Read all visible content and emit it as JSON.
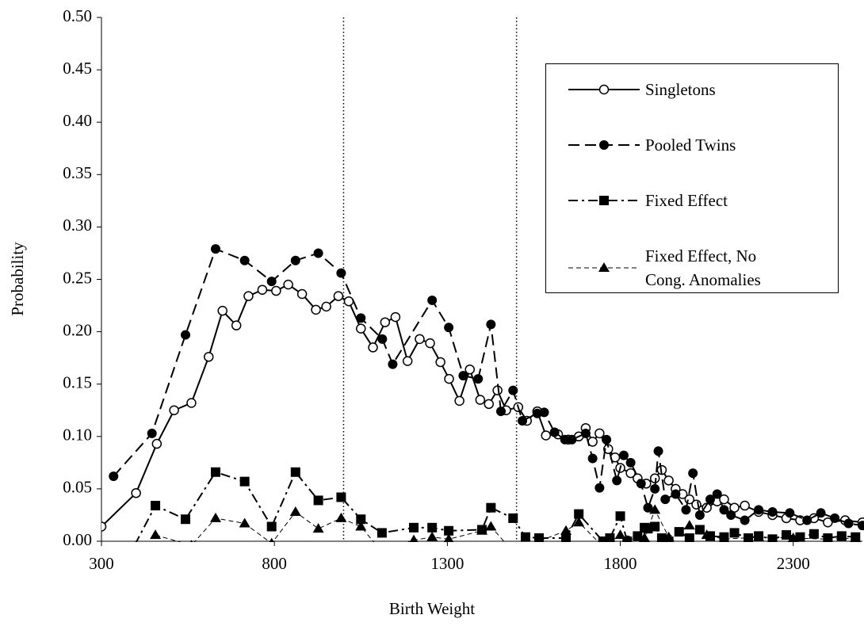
{
  "chart_data": {
    "type": "line",
    "xlabel": "Birth Weight",
    "ylabel": "Probability",
    "xlim": [
      300,
      2500
    ],
    "ylim": [
      0,
      0.5
    ],
    "xticks": [
      300,
      800,
      1300,
      1800,
      2300
    ],
    "yticks": [
      {
        "value": 0,
        "label": "0.00"
      },
      {
        "value": 0.05,
        "label": "0.05"
      },
      {
        "value": 0.1,
        "label": "0.10"
      },
      {
        "value": 0.15,
        "label": "0.15"
      },
      {
        "value": 0.2,
        "label": "0.20"
      },
      {
        "value": 0.25,
        "label": "0.25"
      },
      {
        "value": 0.3,
        "label": "0.30"
      },
      {
        "value": 0.35,
        "label": "0.35"
      },
      {
        "value": 0.4,
        "label": "0.40"
      },
      {
        "value": 0.45,
        "label": "0.45"
      },
      {
        "value": 0.5,
        "label": "0.50"
      }
    ],
    "vlines": [
      1000,
      1500
    ],
    "series": [
      {
        "name": "Singletons",
        "color": "#000000",
        "marker": "open-circle",
        "dash": "none",
        "width": 2,
        "x": [
          300,
          400,
          460,
          510,
          560,
          610,
          650,
          690,
          725,
          765,
          805,
          840,
          880,
          920,
          950,
          985,
          1015,
          1050,
          1085,
          1120,
          1150,
          1185,
          1220,
          1250,
          1280,
          1305,
          1335,
          1365,
          1395,
          1420,
          1445,
          1470,
          1505,
          1530,
          1560,
          1585,
          1620,
          1650,
          1680,
          1700,
          1720,
          1740,
          1765,
          1785,
          1800,
          1830,
          1850,
          1875,
          1900,
          1920,
          1940,
          1960,
          1980,
          2000,
          2020,
          2050,
          2080,
          2100,
          2130,
          2160,
          2200,
          2240,
          2280,
          2320,
          2360,
          2400,
          2450,
          2500
        ],
        "values": [
          0.014,
          0.046,
          0.093,
          0.125,
          0.132,
          0.176,
          0.22,
          0.206,
          0.234,
          0.24,
          0.239,
          0.245,
          0.236,
          0.221,
          0.224,
          0.234,
          0.229,
          0.203,
          0.185,
          0.209,
          0.214,
          0.172,
          0.193,
          0.189,
          0.171,
          0.155,
          0.134,
          0.164,
          0.135,
          0.131,
          0.144,
          0.125,
          0.128,
          0.115,
          0.124,
          0.101,
          0.102,
          0.097,
          0.1,
          0.108,
          0.095,
          0.103,
          0.088,
          0.08,
          0.07,
          0.065,
          0.06,
          0.055,
          0.06,
          0.068,
          0.058,
          0.05,
          0.045,
          0.04,
          0.035,
          0.032,
          0.038,
          0.04,
          0.032,
          0.034,
          0.028,
          0.025,
          0.022,
          0.02,
          0.022,
          0.018,
          0.02,
          0.018
        ]
      },
      {
        "name": "Pooled Twins",
        "color": "#000000",
        "marker": "circle",
        "dash": "14,7",
        "width": 2,
        "x": [
          335,
          446,
          543,
          630,
          714,
          792,
          861,
          927,
          993,
          1050,
          1112,
          1142,
          1256,
          1304,
          1346,
          1389,
          1426,
          1455,
          1490,
          1517,
          1560,
          1580,
          1610,
          1640,
          1660,
          1700,
          1720,
          1740,
          1760,
          1790,
          1810,
          1830,
          1860,
          1880,
          1900,
          1910,
          1930,
          1960,
          1990,
          2010,
          2030,
          2060,
          2080,
          2100,
          2120,
          2160,
          2200,
          2240,
          2290,
          2340,
          2380,
          2420,
          2460,
          2500
        ],
        "values": [
          0.062,
          0.103,
          0.197,
          0.279,
          0.268,
          0.248,
          0.268,
          0.275,
          0.256,
          0.213,
          0.193,
          0.169,
          0.23,
          0.204,
          0.158,
          0.155,
          0.207,
          0.124,
          0.144,
          0.115,
          0.122,
          0.123,
          0.104,
          0.097,
          0.097,
          0.103,
          0.079,
          0.051,
          0.097,
          0.058,
          0.082,
          0.075,
          0.055,
          0.032,
          0.05,
          0.086,
          0.04,
          0.045,
          0.03,
          0.065,
          0.025,
          0.04,
          0.045,
          0.03,
          0.025,
          0.02,
          0.03,
          0.028,
          0.027,
          0.02,
          0.027,
          0.022,
          0.017,
          0.015
        ]
      },
      {
        "name": "Fixed Effect",
        "color": "#000000",
        "marker": "square",
        "dash": "12,5,3,5",
        "width": 2,
        "x": [
          370,
          456,
          543,
          630,
          714,
          792,
          861,
          927,
          993,
          1050,
          1111,
          1203,
          1256,
          1304,
          1400,
          1426,
          1490,
          1526,
          1565,
          1643,
          1680,
          1750,
          1770,
          1800,
          1820,
          1850,
          1870,
          1880,
          1900,
          1920,
          1940,
          1970,
          2000,
          2030,
          2060,
          2100,
          2130,
          2170,
          2200,
          2240,
          2280,
          2320,
          2360,
          2400,
          2440,
          2480
        ],
        "values": [
          -0.02,
          0.034,
          0.021,
          0.066,
          0.057,
          0.014,
          0.066,
          0.039,
          0.042,
          0.021,
          0.008,
          0.013,
          0.013,
          0.01,
          0.011,
          0.032,
          0.022,
          0.004,
          0.003,
          0.003,
          0.026,
          0,
          0.003,
          0.024,
          0,
          0.005,
          0.013,
          0.012,
          0.014,
          0.003,
          0,
          0.009,
          0.003,
          0.011,
          0.005,
          0.004,
          0.008,
          0.003,
          0.005,
          0.002,
          0.006,
          0.004,
          0.007,
          0.003,
          0.005,
          0.004
        ]
      },
      {
        "name": "Fixed Effect, No Cong. Anomalies",
        "color": "#000000",
        "marker": "triangle",
        "dash": "6,4",
        "width": 1,
        "x": [
          456,
          560,
          630,
          714,
          792,
          861,
          927,
          993,
          1050,
          1111,
          1203,
          1256,
          1304,
          1400,
          1426,
          1490,
          1565,
          1643,
          1680,
          1750,
          1800,
          1870,
          1900,
          1940,
          2000,
          2050,
          2100,
          2200,
          2300,
          2400,
          2480
        ],
        "values": [
          0.006,
          -0.004,
          0.022,
          0.017,
          -0.002,
          0.028,
          0.012,
          0.022,
          0.014,
          -0.01,
          0.001,
          0.004,
          0.002,
          0.01,
          0.014,
          -0.01,
          0,
          0.01,
          0.018,
          -0.005,
          0.006,
          0.003,
          0.03,
          0.004,
          0.015,
          0.006,
          0.002,
          0.004,
          0.003,
          0.002,
          0.003
        ]
      }
    ]
  }
}
